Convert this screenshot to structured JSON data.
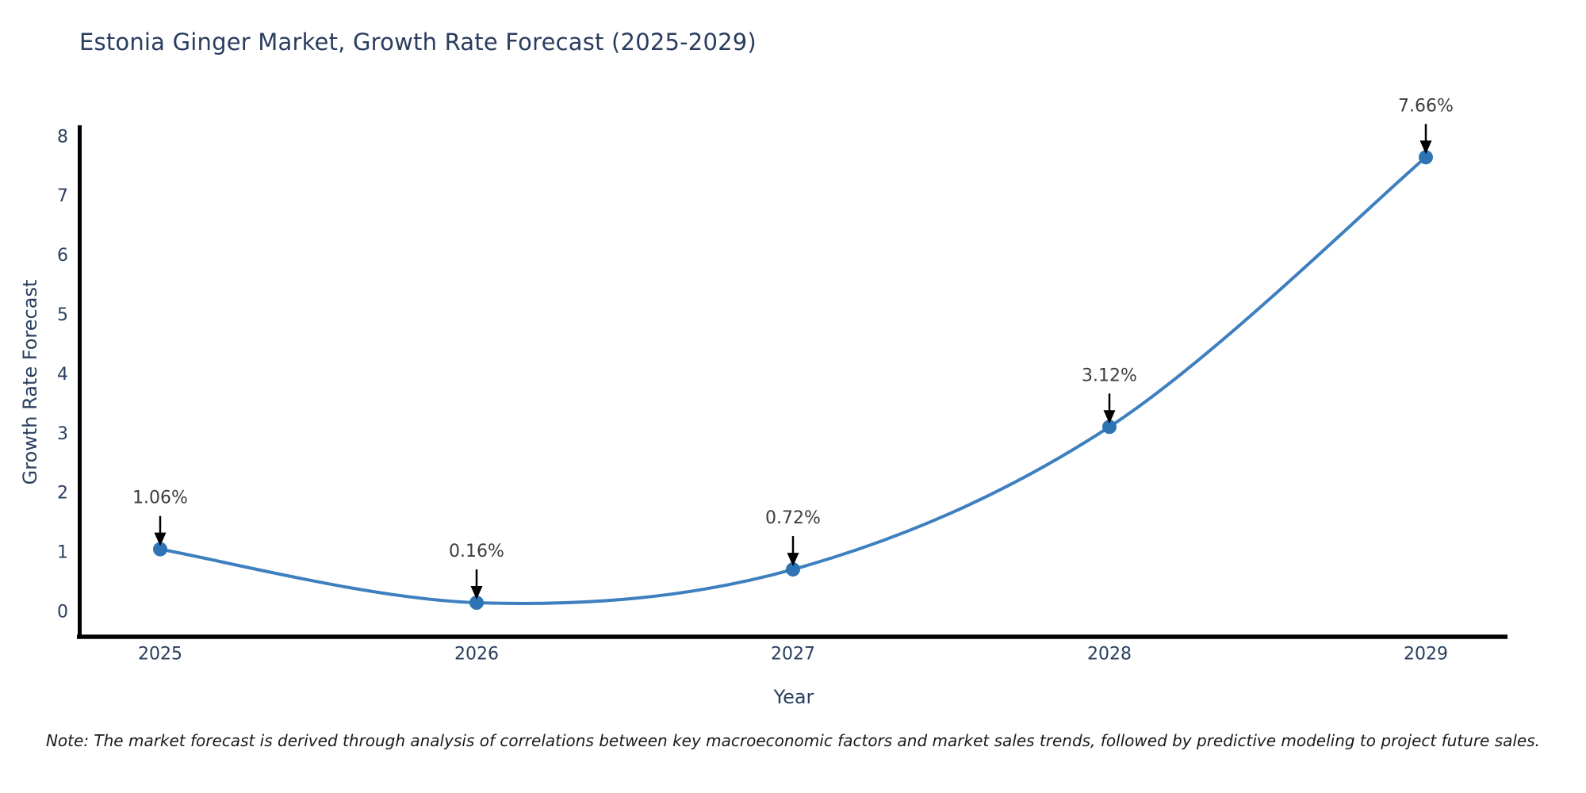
{
  "chart": {
    "note": "Note: The market forecast is derived through analysis of correlations between key macroeconomic factors and market sales trends, followed by predictive modeling to project future sales."
  },
  "chart_data": {
    "type": "line",
    "title": "Estonia Ginger Market, Growth Rate Forecast (2025-2029)",
    "x": [
      2025,
      2026,
      2027,
      2028,
      2029
    ],
    "xticklabels": [
      "2025",
      "2026",
      "2027",
      "2028",
      "2029"
    ],
    "series": [
      {
        "name": "Growth Rate Forecast",
        "values": [
          1.06,
          0.16,
          0.72,
          3.12,
          7.66
        ]
      }
    ],
    "point_labels": [
      "1.06%",
      "0.16%",
      "0.72%",
      "3.12%",
      "7.66%"
    ],
    "xlabel": "Year",
    "ylabel": "Growth Rate Forecast",
    "yticks": [
      0,
      1,
      2,
      3,
      4,
      5,
      6,
      7,
      8
    ],
    "ylim": [
      -0.43,
      8.2
    ],
    "grid": false,
    "legend": "none",
    "smooth": true,
    "annotation_style": "down-arrow",
    "colors": {
      "line": "#3d7fbf",
      "marker": "#2e74b5",
      "axis_text": "#2a3f5f",
      "annotation_text": "#3d3d3d",
      "arrow": "#000000",
      "spine": "#000000"
    }
  }
}
